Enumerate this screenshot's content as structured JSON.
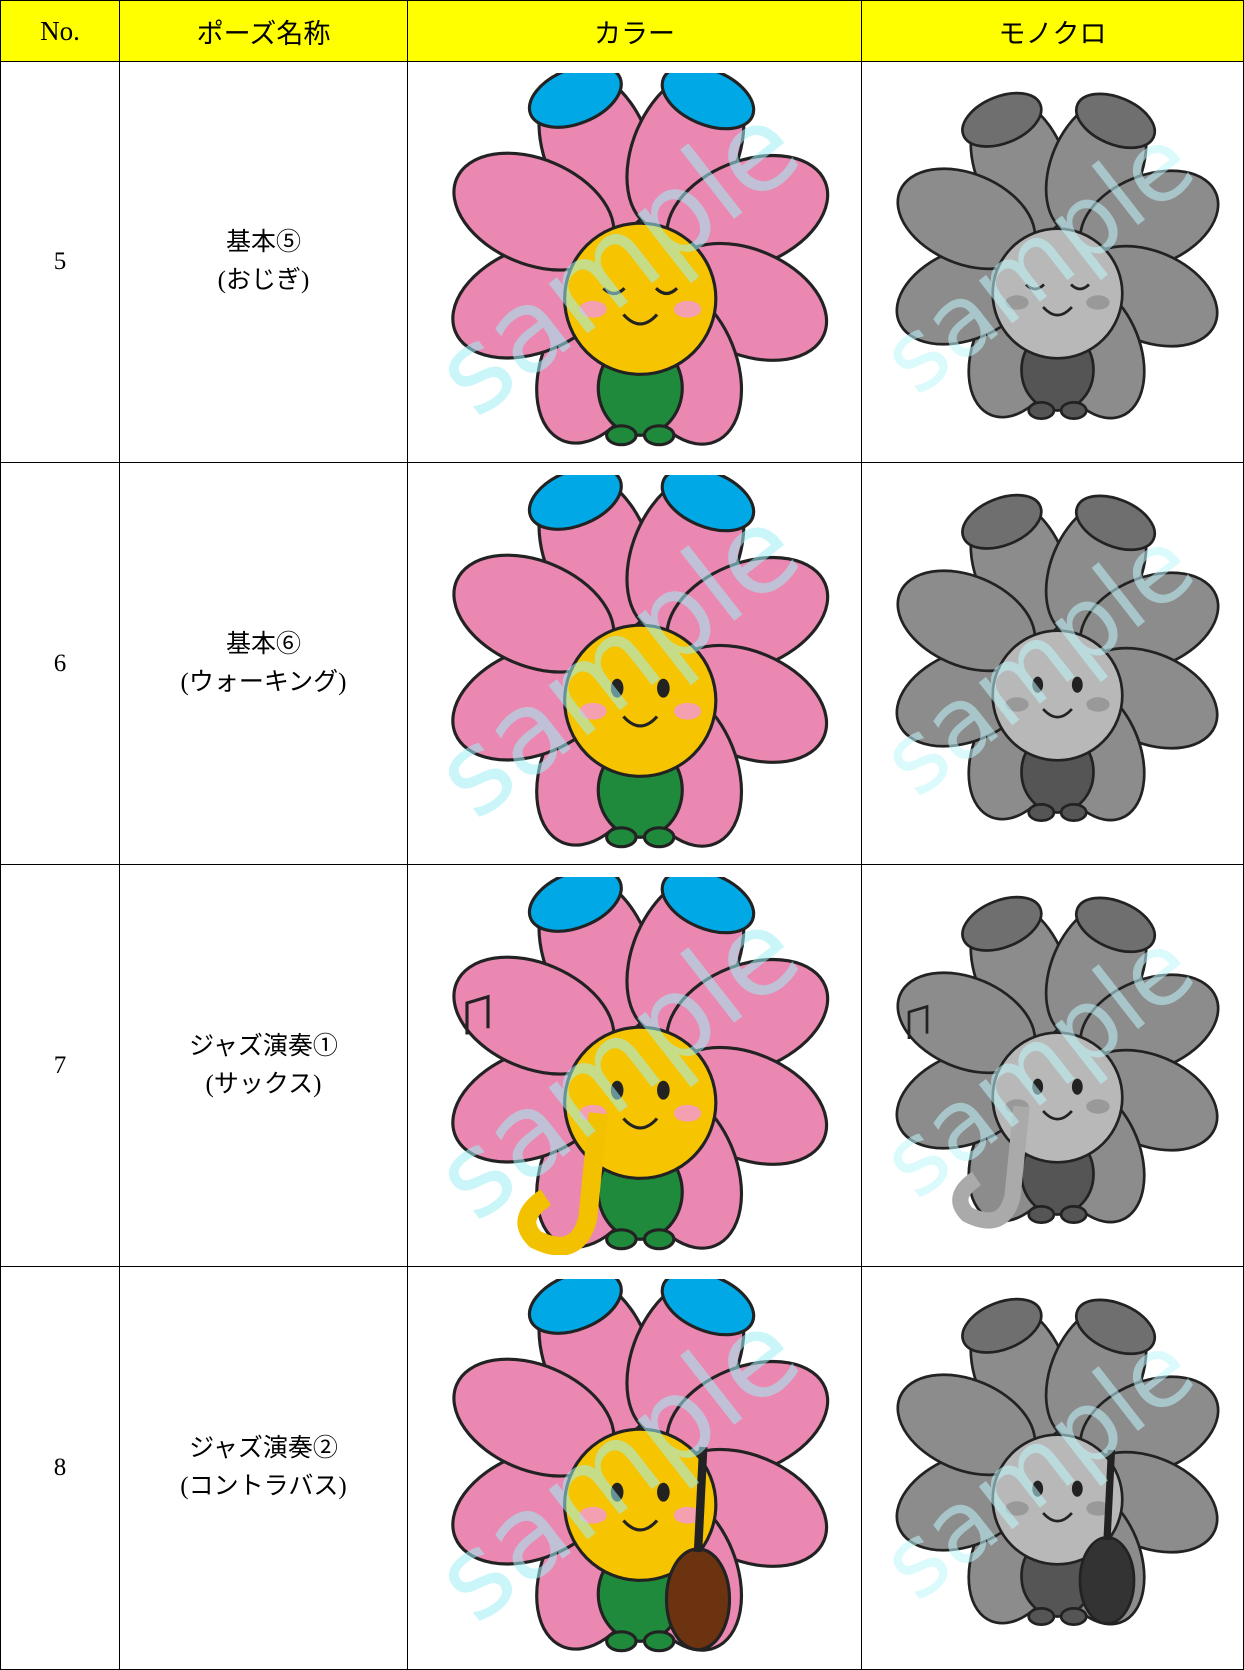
{
  "header": {
    "columns": [
      "No.",
      "ポーズ名称",
      "カラー",
      "モノクロ"
    ]
  },
  "table": {
    "rows": [
      {
        "no": 5,
        "name": [
          "基本⑤",
          "(おじぎ)"
        ]
      },
      {
        "no": 6,
        "name": [
          "基本⑥",
          "(ウォーキング)"
        ]
      },
      {
        "no": 7,
        "name": [
          "ジャズ演奏①",
          "(サックス)"
        ]
      },
      {
        "no": 8,
        "name": [
          "ジャズ演奏②",
          "(コントラバス)"
        ]
      }
    ]
  },
  "watermark": "sample"
}
